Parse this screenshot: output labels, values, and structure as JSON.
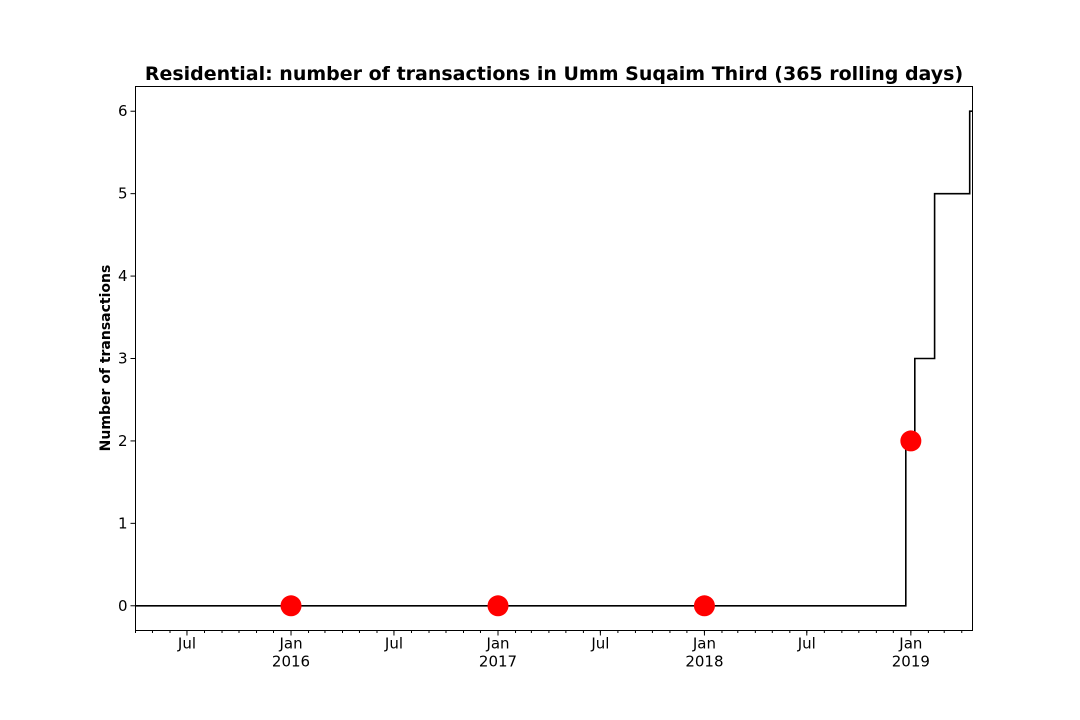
{
  "chart_data": {
    "type": "line",
    "title": "Residential: number of transactions in Umm Suqaim Third (365 rolling days)",
    "xlabel": "",
    "ylabel": "Number of transactions",
    "xlim": [
      "2015-04-01",
      "2019-04-20"
    ],
    "ylim": [
      -0.3,
      6.3
    ],
    "grid": false,
    "y_ticks": [
      0,
      1,
      2,
      3,
      4,
      5,
      6
    ],
    "x_ticks": [
      {
        "date": "2015-07-01",
        "label": "Jul",
        "sublabel": ""
      },
      {
        "date": "2016-01-01",
        "label": "Jan",
        "sublabel": "2016"
      },
      {
        "date": "2016-07-01",
        "label": "Jul",
        "sublabel": ""
      },
      {
        "date": "2017-01-01",
        "label": "Jan",
        "sublabel": "2017"
      },
      {
        "date": "2017-07-01",
        "label": "Jul",
        "sublabel": ""
      },
      {
        "date": "2018-01-01",
        "label": "Jan",
        "sublabel": "2018"
      },
      {
        "date": "2018-07-01",
        "label": "Jul",
        "sublabel": ""
      },
      {
        "date": "2019-01-01",
        "label": "Jan",
        "sublabel": "2019"
      }
    ],
    "series": [
      {
        "kind": "step-line",
        "color": "#000000",
        "points": [
          {
            "x": "2015-04-01",
            "y": 0
          },
          {
            "x": "2018-12-23",
            "y": 0
          },
          {
            "x": "2018-12-23",
            "y": 2
          },
          {
            "x": "2019-01-08",
            "y": 2
          },
          {
            "x": "2019-01-08",
            "y": 3
          },
          {
            "x": "2019-02-12",
            "y": 3
          },
          {
            "x": "2019-02-12",
            "y": 5
          },
          {
            "x": "2019-04-15",
            "y": 5
          },
          {
            "x": "2019-04-15",
            "y": 6
          },
          {
            "x": "2019-04-20",
            "y": 6
          }
        ]
      },
      {
        "kind": "markers",
        "color": "#ff0000",
        "points": [
          {
            "x": "2016-01-01",
            "y": 0
          },
          {
            "x": "2017-01-01",
            "y": 0
          },
          {
            "x": "2018-01-01",
            "y": 0
          },
          {
            "x": "2019-01-01",
            "y": 2
          }
        ]
      }
    ]
  }
}
